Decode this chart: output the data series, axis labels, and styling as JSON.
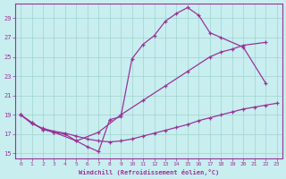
{
  "xlabel": "Windchill (Refroidissement éolien,°C)",
  "bg_color": "#c8eef0",
  "grid_color": "#a0d4cc",
  "line_color": "#993399",
  "xlim": [
    -0.5,
    23.5
  ],
  "ylim": [
    14.5,
    30.5
  ],
  "yticks": [
    15,
    17,
    19,
    21,
    23,
    25,
    27,
    29
  ],
  "xticks": [
    0,
    1,
    2,
    3,
    4,
    5,
    6,
    7,
    8,
    9,
    10,
    11,
    12,
    13,
    14,
    15,
    16,
    17,
    18,
    19,
    20,
    21,
    22,
    23
  ],
  "line_top_x": [
    0,
    1,
    2,
    3,
    4,
    5,
    6,
    7,
    8,
    9,
    10,
    11,
    12,
    13,
    14,
    15,
    16,
    17,
    18,
    20,
    22
  ],
  "line_top_y": [
    19,
    18.2,
    17.5,
    17.2,
    17.0,
    16.3,
    15.7,
    15.2,
    18.5,
    18.8,
    24.8,
    26.3,
    27.2,
    28.7,
    29.5,
    30.1,
    29.3,
    27.5,
    27.0,
    26.0,
    22.3
  ],
  "line_mid_x": [
    0,
    1,
    2,
    3,
    5,
    7,
    9,
    11,
    13,
    15,
    17,
    18,
    19,
    20,
    22
  ],
  "line_mid_y": [
    19,
    18.2,
    17.5,
    17.2,
    16.3,
    17.2,
    19.0,
    20.5,
    22.0,
    23.5,
    25.0,
    25.5,
    25.8,
    26.2,
    26.5
  ],
  "line_bot_x": [
    0,
    1,
    2,
    3,
    4,
    5,
    6,
    7,
    8,
    9,
    10,
    11,
    12,
    13,
    14,
    15,
    16,
    17,
    18,
    19,
    20,
    21,
    22,
    23
  ],
  "line_bot_y": [
    19.0,
    18.1,
    17.6,
    17.3,
    17.1,
    16.8,
    16.5,
    16.3,
    16.2,
    16.3,
    16.5,
    16.8,
    17.1,
    17.4,
    17.7,
    18.0,
    18.4,
    18.7,
    19.0,
    19.3,
    19.6,
    19.8,
    20.0,
    20.2
  ]
}
